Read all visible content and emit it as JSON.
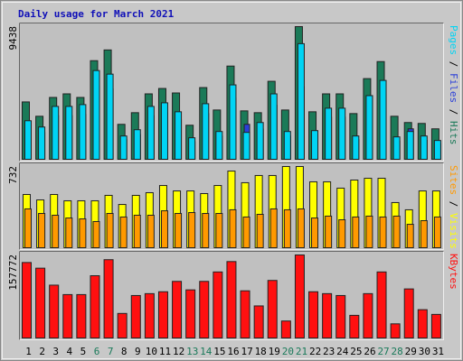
{
  "chart_data": [
    {
      "type": "bar",
      "title": "Daily usage for March 2021",
      "ylim": [
        0,
        9438
      ],
      "yticks": [
        9438
      ],
      "legend_separator": " / ",
      "series": [
        {
          "name": "Hits",
          "color": "#1b7a58",
          "values": [
            4081,
            3061,
            4400,
            4655,
            4400,
            7015,
            7780,
            2487,
            3316,
            4655,
            5038,
            4719,
            2423,
            5102,
            3507,
            6632,
            3444,
            3316,
            5548,
            3507,
            9438,
            3380,
            4655,
            4655,
            3252,
            5739,
            6951,
            3061,
            2615,
            2551,
            2168
          ]
        },
        {
          "name": "Files",
          "color": "#2a3fd8",
          "values": [
            2400,
            1900,
            3100,
            3100,
            3200,
            5200,
            5000,
            1400,
            1750,
            3100,
            3300,
            2800,
            1250,
            3250,
            1650,
            4350,
            2487,
            2150,
            3850,
            1650,
            5165,
            1700,
            3000,
            3000,
            1400,
            4528,
            4600,
            1300,
            2168,
            1350,
            1100
          ]
        },
        {
          "name": "Pages",
          "color": "#00d4f4",
          "values": [
            2742,
            2296,
            3762,
            3762,
            3890,
            6313,
            6058,
            1658,
            2104,
            3762,
            4018,
            3380,
            1530,
            3954,
            1977,
            5293,
            1913,
            2615,
            4655,
            1977,
            8226,
            2041,
            3635,
            3635,
            1658,
            4528,
            5612,
            1594,
            1977,
            1658,
            1339
          ]
        }
      ]
    },
    {
      "type": "bar",
      "ylim": [
        0,
        732
      ],
      "yticks": [
        732
      ],
      "legend_separator": " / ",
      "series": [
        {
          "name": "Visits",
          "color": "#ffff00",
          "values": [
            480,
            431,
            480,
            423,
            423,
            423,
            472,
            390,
            472,
            496,
            561,
            512,
            512,
            488,
            561,
            691,
            586,
            651,
            651,
            732,
            732,
            594,
            594,
            537,
            610,
            626,
            626,
            407,
            342,
            512,
            512
          ]
        },
        {
          "name": "Sites",
          "color": "#ff9900",
          "values": [
            350,
            309,
            293,
            268,
            260,
            236,
            309,
            277,
            293,
            293,
            333,
            309,
            317,
            309,
            309,
            342,
            277,
            301,
            350,
            342,
            350,
            268,
            285,
            252,
            277,
            285,
            277,
            285,
            211,
            244,
            277
          ]
        }
      ]
    },
    {
      "type": "bar",
      "ylim": [
        0,
        157772
      ],
      "yticks": [
        157772
      ],
      "categories": [
        "1",
        "2",
        "3",
        "4",
        "5",
        "6",
        "7",
        "8",
        "9",
        "10",
        "11",
        "12",
        "13",
        "14",
        "15",
        "16",
        "17",
        "18",
        "19",
        "20",
        "21",
        "22",
        "23",
        "24",
        "25",
        "26",
        "27",
        "28",
        "29",
        "30",
        "31"
      ],
      "category_colors": [
        "#000",
        "#000",
        "#000",
        "#000",
        "#000",
        "#1a7a5a",
        "#1a7a5a",
        "#000",
        "#000",
        "#000",
        "#000",
        "#000",
        "#1a7a5a",
        "#1a7a5a",
        "#000",
        "#000",
        "#000",
        "#000",
        "#000",
        "#1a7a5a",
        "#1a7a5a",
        "#000",
        "#000",
        "#000",
        "#000",
        "#000",
        "#1a7a5a",
        "#1a7a5a",
        "#000",
        "#000",
        "#000"
      ],
      "series": [
        {
          "name": "KBytes",
          "color": "#ff1010",
          "values": [
            143429,
            132672,
            100400,
            82472,
            82472,
            118329,
            148807,
            46614,
            80679,
            84264,
            87850,
            107572,
            91436,
            107572,
            125500,
            145222,
            89643,
            60957,
            109365,
            32272,
            157772,
            87850,
            84264,
            80679,
            43029,
            84264,
            125500,
            26893,
            93229,
            53786,
            44822
          ]
        }
      ]
    }
  ]
}
